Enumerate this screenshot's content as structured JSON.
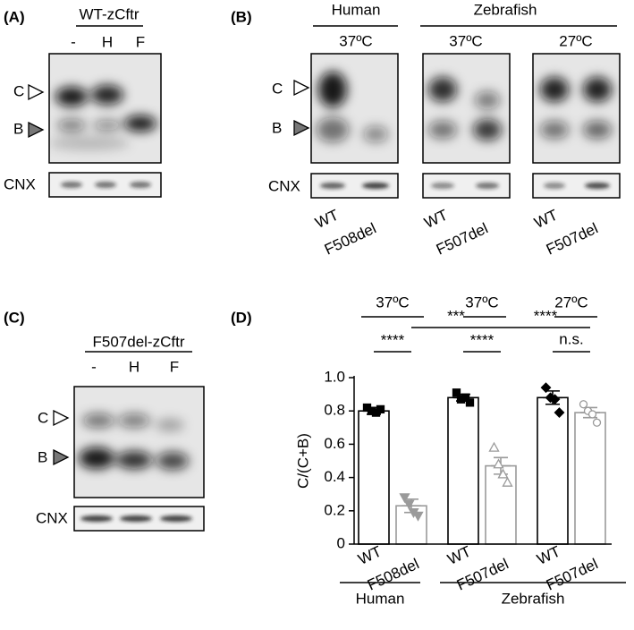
{
  "panel_a": {
    "label": "(A)",
    "title": "WT-zCftr",
    "lanes": [
      "-",
      "H",
      "F"
    ],
    "bands": [
      "C",
      "B"
    ],
    "loading": "CNX"
  },
  "panel_b": {
    "label": "(B)",
    "groups": [
      "Human",
      "Zebrafish"
    ],
    "temps": [
      "37ºC",
      "37ºC",
      "27ºC"
    ],
    "lanes": [
      "WT",
      "F508del",
      "WT",
      "F507del",
      "WT",
      "F507del"
    ],
    "bands": [
      "C",
      "B"
    ],
    "loading": "CNX"
  },
  "panel_c": {
    "label": "(C)",
    "title": "F507del-zCftr",
    "lanes": [
      "-",
      "H",
      "F"
    ],
    "bands": [
      "C",
      "B"
    ],
    "loading": "CNX"
  },
  "chart_data": {
    "type": "bar",
    "label": "(D)",
    "ylabel": "C/(C+B)",
    "categories": [
      "WT",
      "F508del",
      "WT",
      "F507del",
      "WT",
      "F507del"
    ],
    "values": [
      0.8,
      0.23,
      0.88,
      0.47,
      0.88,
      0.79
    ],
    "errors": [
      0.02,
      0.04,
      0.02,
      0.05,
      0.04,
      0.03
    ],
    "points": [
      [
        0.82,
        0.8,
        0.79,
        0.81
      ],
      [
        0.28,
        0.24,
        0.19,
        0.17
      ],
      [
        0.91,
        0.87,
        0.88,
        0.85
      ],
      [
        0.58,
        0.48,
        0.42,
        0.37
      ],
      [
        0.94,
        0.88,
        0.87,
        0.79
      ],
      [
        0.84,
        0.8,
        0.78,
        0.73
      ]
    ],
    "colors": [
      "#000000",
      "#9a9a9a",
      "#000000",
      "#9a9a9a",
      "#000000",
      "#9a9a9a"
    ],
    "markers": [
      "square",
      "triangle-down",
      "square",
      "triangle",
      "diamond",
      "circle"
    ],
    "marker_filled": [
      true,
      true,
      true,
      false,
      true,
      false
    ],
    "temps": [
      "37ºC",
      "37ºC",
      "27ºC"
    ],
    "groups": [
      "Human",
      "Zebrafish"
    ],
    "annotations": [
      "****",
      "***",
      "****",
      "****",
      "n.s."
    ],
    "ylim": [
      0,
      1
    ],
    "yticks": [
      0,
      0.2,
      0.4,
      0.6,
      0.8,
      {
        "value": 1,
        "label": "1.0"
      }
    ]
  }
}
